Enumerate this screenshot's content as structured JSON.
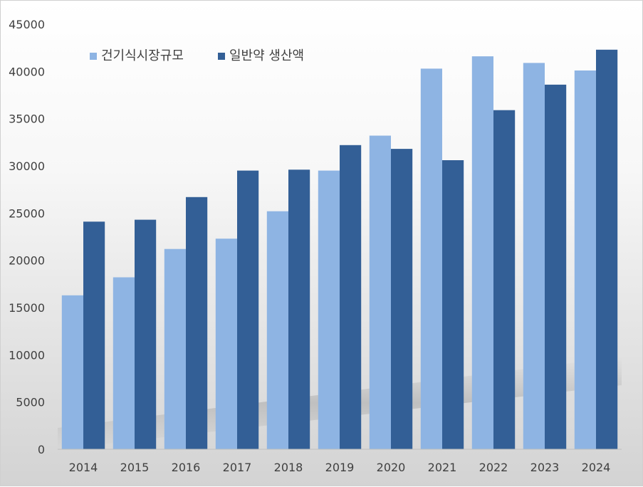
{
  "chart_data": {
    "type": "bar",
    "title": "",
    "xlabel": "",
    "ylabel": "",
    "categories": [
      "2014",
      "2015",
      "2016",
      "2017",
      "2018",
      "2019",
      "2020",
      "2021",
      "2022",
      "2023",
      "2024"
    ],
    "series": [
      {
        "name": "건기식시장규모",
        "color": "#8eb4e3",
        "values": [
          16300,
          18200,
          21200,
          22300,
          25200,
          29500,
          33200,
          40300,
          41600,
          40900,
          40100
        ]
      },
      {
        "name": "일반약 생산액",
        "color": "#335f96",
        "values": [
          24100,
          24300,
          26700,
          29500,
          29600,
          32200,
          31800,
          30600,
          35900,
          38600,
          42300
        ]
      }
    ],
    "ylim": [
      0,
      45000
    ],
    "yticks": [
      0,
      5000,
      10000,
      15000,
      20000,
      25000,
      30000,
      35000,
      40000,
      45000
    ],
    "legend_position": "top-left",
    "grid": false
  }
}
